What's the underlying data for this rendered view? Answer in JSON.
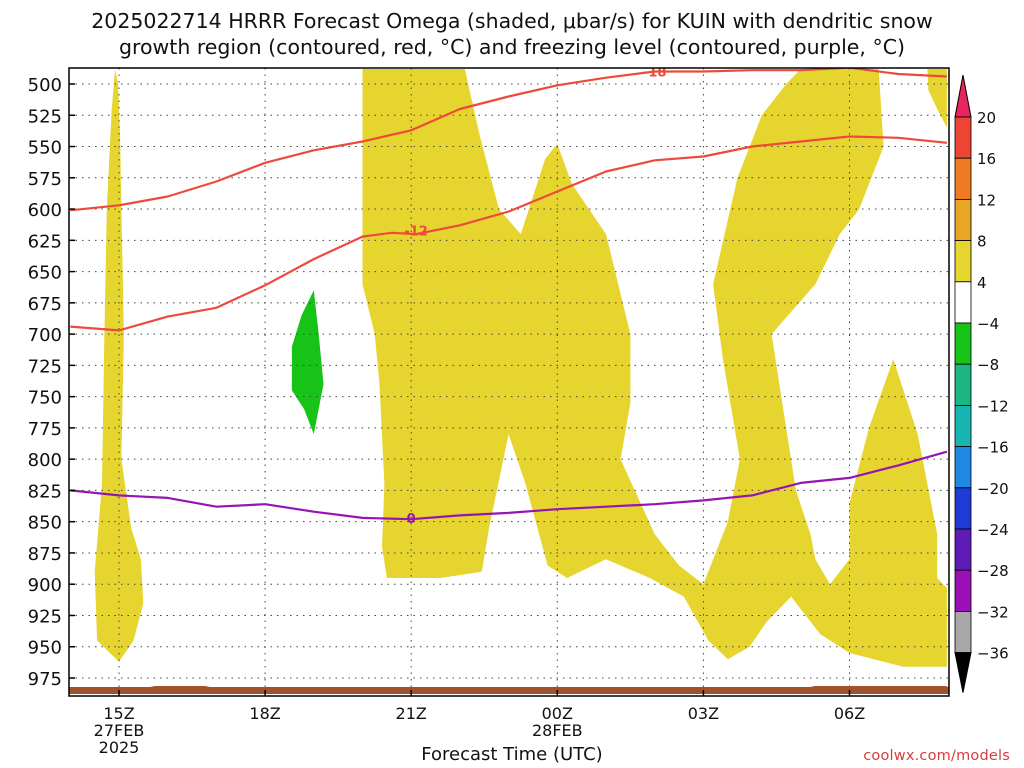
{
  "title_line1": "2025022714 HRRR Forecast Omega (shaded, μbar/s) for KUIN with dendritic snow",
  "title_line2": "growth region (contoured, red, °C) and freezing level (contoured, purple, °C)",
  "credit": "coolwx.com/models",
  "chart_data": {
    "type": "heatmap",
    "xlabel": "Forecast Time (UTC)",
    "x_ticks": [
      {
        "hour": 15,
        "lines": [
          "15Z",
          "27FEB",
          "2025"
        ]
      },
      {
        "hour": 18,
        "lines": [
          "18Z"
        ]
      },
      {
        "hour": 21,
        "lines": [
          "21Z"
        ]
      },
      {
        "hour": 24,
        "lines": [
          "00Z",
          "28FEB"
        ]
      },
      {
        "hour": 27,
        "lines": [
          "03Z"
        ]
      },
      {
        "hour": 30,
        "lines": [
          "06Z"
        ]
      }
    ],
    "x_range_hours": [
      14,
      32
    ],
    "y_ticks": [
      500,
      525,
      550,
      575,
      600,
      625,
      650,
      675,
      700,
      725,
      750,
      775,
      800,
      825,
      850,
      875,
      900,
      925,
      950,
      975
    ],
    "y_range_hpa": [
      500,
      975
    ],
    "grid": true,
    "colorbar": {
      "labels": [
        "20",
        "16",
        "12",
        "8",
        "4",
        "−4",
        "−8",
        "−12",
        "−16",
        "−20",
        "−24",
        "−28",
        "−32",
        "−36"
      ],
      "colors": [
        "#e8245d",
        "#ee4433",
        "#ef7b22",
        "#e7a623",
        "#e6d52e",
        "#ffffff",
        "#16c316",
        "#1db583",
        "#17b6b3",
        "#1e88e2",
        "#1f3ad6",
        "#5e1bb5",
        "#9a10b5",
        "#a8a8a8"
      ],
      "bottom_arrow_color": "#000000"
    },
    "omega_regions": [
      {
        "level": "4 to 8",
        "color": "#e6d52e",
        "points": [
          [
            14.98,
            500
          ],
          [
            15.02,
            540
          ],
          [
            15.05,
            600
          ],
          [
            15.1,
            700
          ],
          [
            15.05,
            800
          ],
          [
            15.25,
            855
          ],
          [
            15.45,
            880
          ],
          [
            15.5,
            915
          ],
          [
            15.3,
            945
          ],
          [
            15.0,
            962
          ],
          [
            14.55,
            945
          ],
          [
            14.5,
            890
          ],
          [
            14.65,
            820
          ],
          [
            14.7,
            700
          ],
          [
            14.75,
            600
          ],
          [
            14.85,
            520
          ],
          [
            14.92,
            488
          ]
        ]
      },
      {
        "level": "4 to 8",
        "color": "#e6d52e",
        "points": [
          [
            20.0,
            488
          ],
          [
            22.1,
            488
          ],
          [
            22.4,
            540
          ],
          [
            22.8,
            600
          ],
          [
            23.25,
            620
          ],
          [
            23.75,
            560
          ],
          [
            24.0,
            548
          ],
          [
            24.3,
            580
          ],
          [
            25.0,
            620
          ],
          [
            25.5,
            700
          ],
          [
            25.5,
            755
          ],
          [
            25.3,
            800
          ],
          [
            26.0,
            860
          ],
          [
            26.5,
            885
          ],
          [
            27.0,
            900
          ],
          [
            27.5,
            850
          ],
          [
            27.75,
            800
          ],
          [
            27.4,
            720
          ],
          [
            27.2,
            660
          ],
          [
            27.7,
            575
          ],
          [
            28.2,
            525
          ],
          [
            28.7,
            500
          ],
          [
            29.0,
            488
          ],
          [
            30.6,
            488
          ],
          [
            30.7,
            550
          ],
          [
            30.2,
            600
          ],
          [
            29.8,
            620
          ],
          [
            29.3,
            660
          ],
          [
            28.4,
            700
          ],
          [
            28.6,
            750
          ],
          [
            28.9,
            825
          ],
          [
            29.2,
            860
          ],
          [
            29.3,
            880
          ],
          [
            29.6,
            900
          ],
          [
            30.0,
            880
          ],
          [
            30.0,
            835
          ],
          [
            30.4,
            775
          ],
          [
            30.9,
            720
          ],
          [
            31.4,
            780
          ],
          [
            31.8,
            860
          ],
          [
            31.8,
            895
          ],
          [
            32.0,
            903
          ],
          [
            32.0,
            966
          ],
          [
            31.1,
            966
          ],
          [
            30.0,
            955
          ],
          [
            29.4,
            940
          ],
          [
            28.8,
            910
          ],
          [
            28.3,
            930
          ],
          [
            27.95,
            950
          ],
          [
            27.5,
            960
          ],
          [
            27.1,
            945
          ],
          [
            26.6,
            910
          ],
          [
            25.9,
            895
          ],
          [
            25.0,
            880
          ],
          [
            24.2,
            895
          ],
          [
            23.8,
            885
          ],
          [
            23.35,
            820
          ],
          [
            23.0,
            780
          ],
          [
            22.6,
            855
          ],
          [
            22.45,
            890
          ],
          [
            21.6,
            895
          ],
          [
            20.5,
            895
          ],
          [
            20.4,
            870
          ],
          [
            20.45,
            820
          ],
          [
            20.35,
            740
          ],
          [
            20.25,
            700
          ],
          [
            20.0,
            660
          ]
        ]
      },
      {
        "level": "4 to 8",
        "color": "#e6d52e",
        "points": [
          [
            31.6,
            488
          ],
          [
            32.0,
            488
          ],
          [
            32.0,
            535
          ],
          [
            31.8,
            520
          ],
          [
            31.62,
            505
          ]
        ]
      },
      {
        "level": "-8 to -4",
        "color": "#16c316",
        "points": [
          [
            19.0,
            665
          ],
          [
            19.1,
            700
          ],
          [
            19.2,
            740
          ],
          [
            19.0,
            780
          ],
          [
            18.8,
            760
          ],
          [
            18.55,
            745
          ],
          [
            18.55,
            710
          ],
          [
            18.75,
            685
          ]
        ]
      }
    ],
    "temperature_contours": [
      {
        "label": "-18",
        "color": "#ee4a3c",
        "label_at": [
          26.0,
          490
        ],
        "points": [
          [
            14.0,
            601
          ],
          [
            15.0,
            597
          ],
          [
            16.0,
            590
          ],
          [
            17.0,
            578
          ],
          [
            18.0,
            563
          ],
          [
            19.0,
            553
          ],
          [
            20.0,
            546
          ],
          [
            21.0,
            537
          ],
          [
            22.0,
            520
          ],
          [
            23.0,
            510
          ],
          [
            24.0,
            501
          ],
          [
            25.0,
            495
          ],
          [
            26.0,
            490
          ],
          [
            27.0,
            490
          ],
          [
            28.0,
            489
          ],
          [
            29.0,
            489
          ],
          [
            30.0,
            487
          ],
          [
            31.0,
            492
          ],
          [
            32.0,
            494
          ]
        ]
      },
      {
        "label": "-12",
        "color": "#ee4a3c",
        "label_at": [
          21.1,
          617
        ],
        "points": [
          [
            14.0,
            694
          ],
          [
            15.0,
            697
          ],
          [
            16.0,
            686
          ],
          [
            17.0,
            679
          ],
          [
            18.0,
            661
          ],
          [
            19.0,
            640
          ],
          [
            20.0,
            622
          ],
          [
            20.6,
            619
          ],
          [
            21.1,
            620
          ],
          [
            22.0,
            613
          ],
          [
            23.0,
            602
          ],
          [
            24.0,
            586
          ],
          [
            25.0,
            570
          ],
          [
            26.0,
            561
          ],
          [
            27.0,
            558
          ],
          [
            28.0,
            550
          ],
          [
            29.0,
            546
          ],
          [
            30.0,
            542
          ],
          [
            31.0,
            543
          ],
          [
            32.0,
            547
          ]
        ]
      },
      {
        "label": "0",
        "color": "#9515b3",
        "label_at": [
          21.0,
          847
        ],
        "points": [
          [
            14.0,
            825
          ],
          [
            15.0,
            829
          ],
          [
            16.0,
            831
          ],
          [
            17.0,
            838
          ],
          [
            18.0,
            836
          ],
          [
            19.0,
            842
          ],
          [
            20.0,
            847
          ],
          [
            21.0,
            848
          ],
          [
            22.0,
            845
          ],
          [
            23.0,
            843
          ],
          [
            24.0,
            840
          ],
          [
            25.0,
            838
          ],
          [
            26.0,
            836
          ],
          [
            27.0,
            833
          ],
          [
            28.0,
            829
          ],
          [
            29.0,
            819
          ],
          [
            30.0,
            815
          ],
          [
            31.0,
            805
          ],
          [
            32.0,
            794
          ]
        ]
      }
    ]
  }
}
